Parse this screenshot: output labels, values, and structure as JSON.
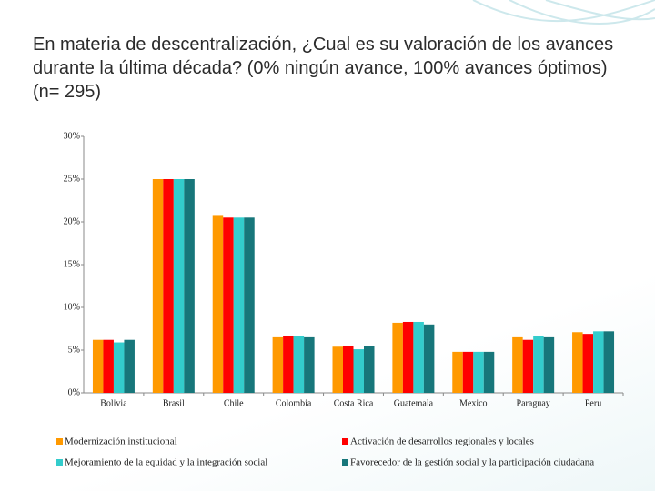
{
  "chart_data": {
    "type": "bar",
    "title": "En materia de descentralización, ¿Cual es su valoración de los avances durante la última década? (0% ningún avance, 100% avances óptimos) (n= 295)",
    "categories": [
      "Bolivia",
      "Brasil",
      "Chile",
      "Colombia",
      "Costa Rica",
      "Guatemala",
      "Mexico",
      "Paraguay",
      "Peru"
    ],
    "series": [
      {
        "name": "Modernización institucional",
        "color": "#ff9900",
        "values": [
          6.2,
          25.0,
          20.7,
          6.5,
          5.4,
          8.2,
          4.8,
          6.5,
          7.1
        ]
      },
      {
        "name": "Activación de desarrollos regionales y locales",
        "color": "#ff0000",
        "values": [
          6.2,
          25.0,
          20.5,
          6.6,
          5.5,
          8.3,
          4.8,
          6.2,
          6.9
        ]
      },
      {
        "name": "Mejoramiento de la equidad y la integración social",
        "color": "#33cccc",
        "values": [
          5.9,
          25.0,
          20.5,
          6.6,
          5.1,
          8.3,
          4.8,
          6.6,
          7.2
        ]
      },
      {
        "name": "Favorecedor de la gestión social y la participación ciudadana",
        "color": "#17767a",
        "values": [
          6.2,
          25.0,
          20.5,
          6.5,
          5.5,
          8.0,
          4.8,
          6.5,
          7.2
        ]
      }
    ],
    "ylim": [
      0,
      30
    ],
    "yticks": [
      {
        "value": 0,
        "label": "0%"
      },
      {
        "value": 5,
        "label": "5%"
      },
      {
        "value": 10,
        "label": "10%"
      },
      {
        "value": 15,
        "label": "15%"
      },
      {
        "value": 20,
        "label": "20%"
      },
      {
        "value": 25,
        "label": "25%"
      },
      {
        "value": 30,
        "label": "30%"
      }
    ]
  }
}
